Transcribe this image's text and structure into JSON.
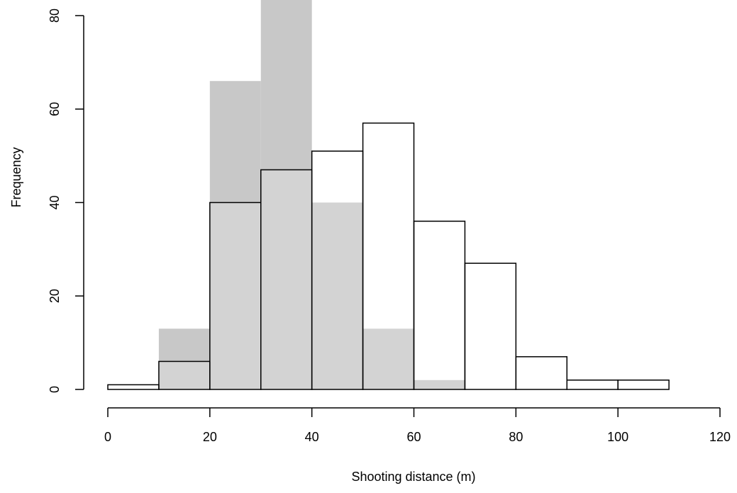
{
  "chart_data": {
    "type": "histogram",
    "xlabel": "Shooting distance (m)",
    "ylabel": "Frequency",
    "bins": [
      0,
      10,
      20,
      30,
      40,
      50,
      60,
      70,
      80,
      90,
      100,
      110,
      120
    ],
    "series": [
      {
        "color": "#c8c8c8",
        "values": [
          0,
          13,
          66,
          90,
          40,
          13,
          2,
          0,
          0,
          0,
          0,
          0
        ]
      },
      {
        "color": "#ffffff",
        "alpha": 0.2,
        "edgecolor": "#000000",
        "values": [
          1,
          6,
          40,
          47,
          51,
          57,
          36,
          27,
          7,
          2,
          2,
          0
        ]
      }
    ],
    "xlim": [
      0,
      120
    ],
    "xticks": [
      0,
      20,
      40,
      60,
      80,
      100,
      120
    ],
    "ylim": [
      0,
      80
    ],
    "yticks": [
      0,
      20,
      40,
      60,
      80
    ]
  }
}
